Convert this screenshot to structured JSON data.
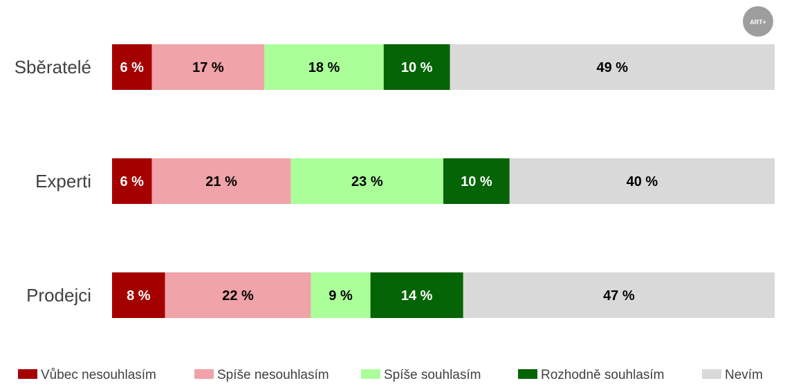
{
  "logo": {
    "text": "ART+"
  },
  "chart_data": {
    "type": "bar",
    "orientation": "horizontal",
    "stacked": true,
    "percent_stacked": true,
    "title": "",
    "xlabel": "",
    "ylabel": "",
    "xlim": [
      0,
      100
    ],
    "grid": false,
    "legend_position": "bottom",
    "categories": [
      "Sběratelé",
      "Experti",
      "Prodejci"
    ],
    "series": [
      {
        "name": "Vůbec nesouhlasím",
        "color": "#a50000",
        "text_color": "#ffffff",
        "values": [
          6,
          6,
          8
        ],
        "labels": [
          "6 %",
          "6 %",
          "8 %"
        ]
      },
      {
        "name": "Spíše nesouhlasím",
        "color": "#f0a3a8",
        "text_color": "#000000",
        "values": [
          17,
          21,
          22
        ],
        "labels": [
          "17 %",
          "21 %",
          "22 %"
        ]
      },
      {
        "name": "Spíše souhlasím",
        "color": "#aaff99",
        "text_color": "#000000",
        "values": [
          18,
          23,
          9
        ],
        "labels": [
          "18 %",
          "23 %",
          "9 %"
        ]
      },
      {
        "name": "Rozhodně souhlasím",
        "color": "#056405",
        "text_color": "#ffffff",
        "values": [
          10,
          10,
          14
        ],
        "labels": [
          "10 %",
          "10 %",
          "14 %"
        ]
      },
      {
        "name": "Nevím",
        "color": "#d9d9d9",
        "text_color": "#000000",
        "values": [
          49,
          40,
          47
        ],
        "labels": [
          "49 %",
          "40 %",
          "47 %"
        ]
      }
    ]
  }
}
